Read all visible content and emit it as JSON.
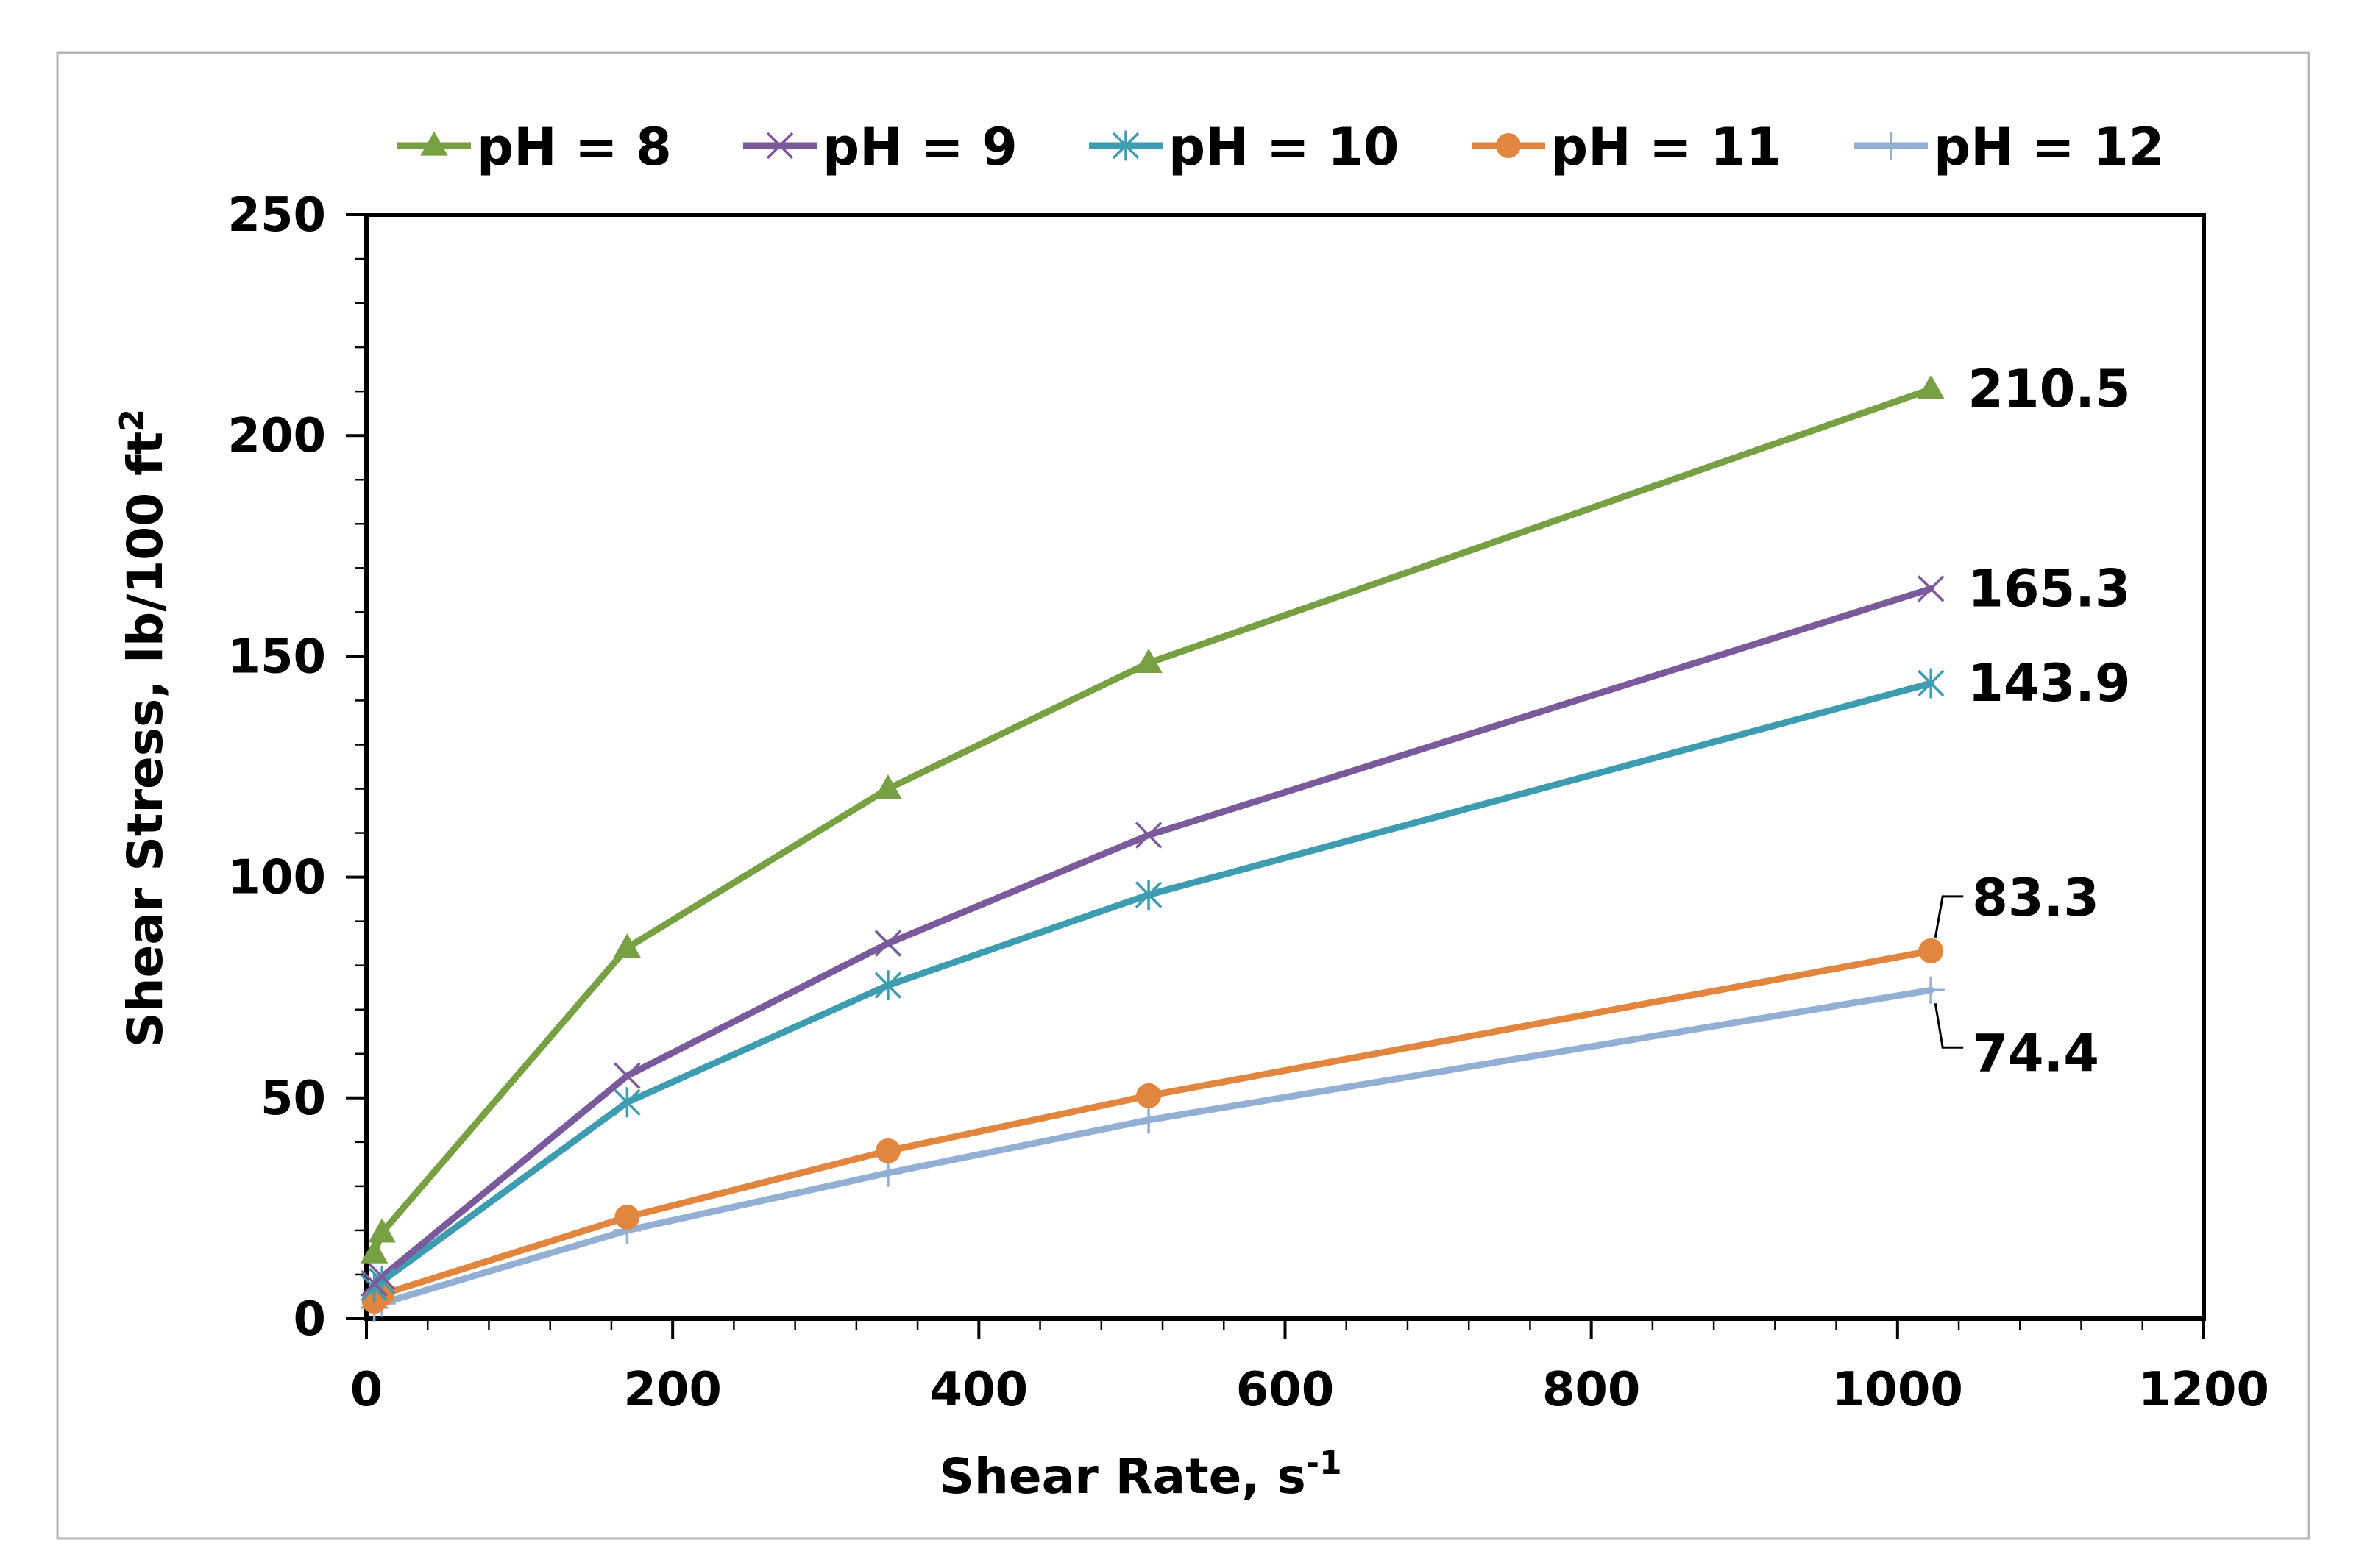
{
  "chart_data": {
    "type": "line",
    "title": "",
    "xlabel": "Shear Rate, s",
    "xlabel_sup": "-1",
    "ylabel": "Shear Stress, lb/100 ft",
    "ylabel_sup": "2",
    "xlim": [
      0,
      1200
    ],
    "ylim": [
      0,
      250
    ],
    "x_ticks": [
      0,
      200,
      400,
      600,
      800,
      1000,
      1200
    ],
    "y_ticks": [
      0,
      50,
      100,
      150,
      200,
      250
    ],
    "x_tick_labels": [
      "0",
      "200",
      "400",
      "600",
      "800",
      "1000",
      "1200"
    ],
    "y_tick_labels": [
      "0",
      "50",
      "100",
      "150",
      "200",
      "250"
    ],
    "legend_position": "top",
    "x": [
      5.1,
      10.2,
      170.3,
      340.7,
      510.9,
      1021.8
    ],
    "series": [
      {
        "name": "pH = 8",
        "color": "#77A043",
        "marker": "triangle",
        "values": [
          14.8,
          19.5,
          84.0,
          120.0,
          148.5,
          210.5
        ]
      },
      {
        "name": "pH = 9",
        "color": "#7B5A9C",
        "marker": "x",
        "values": [
          8.0,
          9.5,
          55.0,
          85.0,
          109.5,
          165.3
        ]
      },
      {
        "name": "pH = 10",
        "color": "#3D9CB0",
        "marker": "asterisk",
        "values": [
          7.0,
          8.5,
          49.0,
          75.5,
          96.0,
          143.9
        ]
      },
      {
        "name": "pH = 11",
        "color": "#E2863F",
        "marker": "circle",
        "values": [
          4.0,
          5.5,
          23.0,
          38.0,
          50.5,
          83.3
        ]
      },
      {
        "name": "pH = 12",
        "color": "#94AFD4",
        "marker": "plus",
        "values": [
          2.5,
          3.5,
          20.0,
          33.0,
          45.0,
          74.4
        ]
      }
    ],
    "annotations": [
      {
        "series": "pH = 8",
        "text": "210.5"
      },
      {
        "series": "pH = 9",
        "text": "165.3"
      },
      {
        "series": "pH = 10",
        "text": "143.9"
      },
      {
        "series": "pH = 11",
        "text": "83.3"
      },
      {
        "series": "pH = 12",
        "text": "74.4"
      }
    ]
  }
}
